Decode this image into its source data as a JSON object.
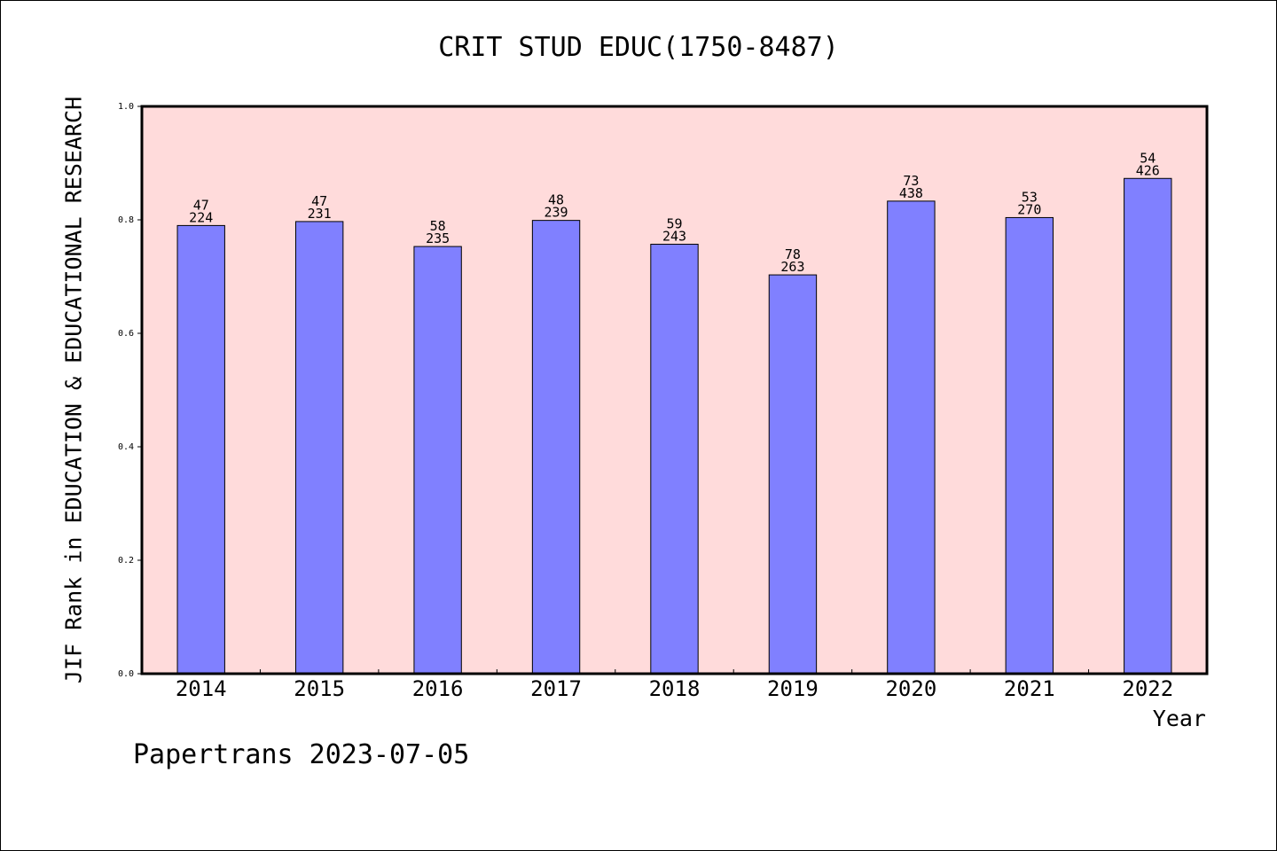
{
  "chart_data": {
    "type": "bar",
    "title": "CRIT STUD EDUC(1750-8487)",
    "xlabel": "Year",
    "ylabel": "JIF Rank in EDUCATION & EDUCATIONAL RESEARCH",
    "ylim": [
      0.0,
      1.0
    ],
    "yticks": [
      "0.0",
      "0.2",
      "0.4",
      "0.6",
      "0.8",
      "1.0"
    ],
    "categories": [
      "2014",
      "2015",
      "2016",
      "2017",
      "2018",
      "2019",
      "2020",
      "2021",
      "2022"
    ],
    "values": [
      0.79,
      0.797,
      0.753,
      0.799,
      0.757,
      0.703,
      0.833,
      0.804,
      0.873
    ],
    "rank_labels": [
      "47",
      "47",
      "58",
      "48",
      "59",
      "78",
      "73",
      "53",
      "54"
    ],
    "total_labels": [
      "224",
      "231",
      "235",
      "239",
      "243",
      "263",
      "438",
      "270",
      "426"
    ],
    "colors": {
      "bar": "#8080ff",
      "plot_background": "#ffdbdb",
      "axes": "#000000"
    },
    "grid": false,
    "legend": "none"
  },
  "footer": {
    "note": "Papertrans 2023-07-05"
  }
}
